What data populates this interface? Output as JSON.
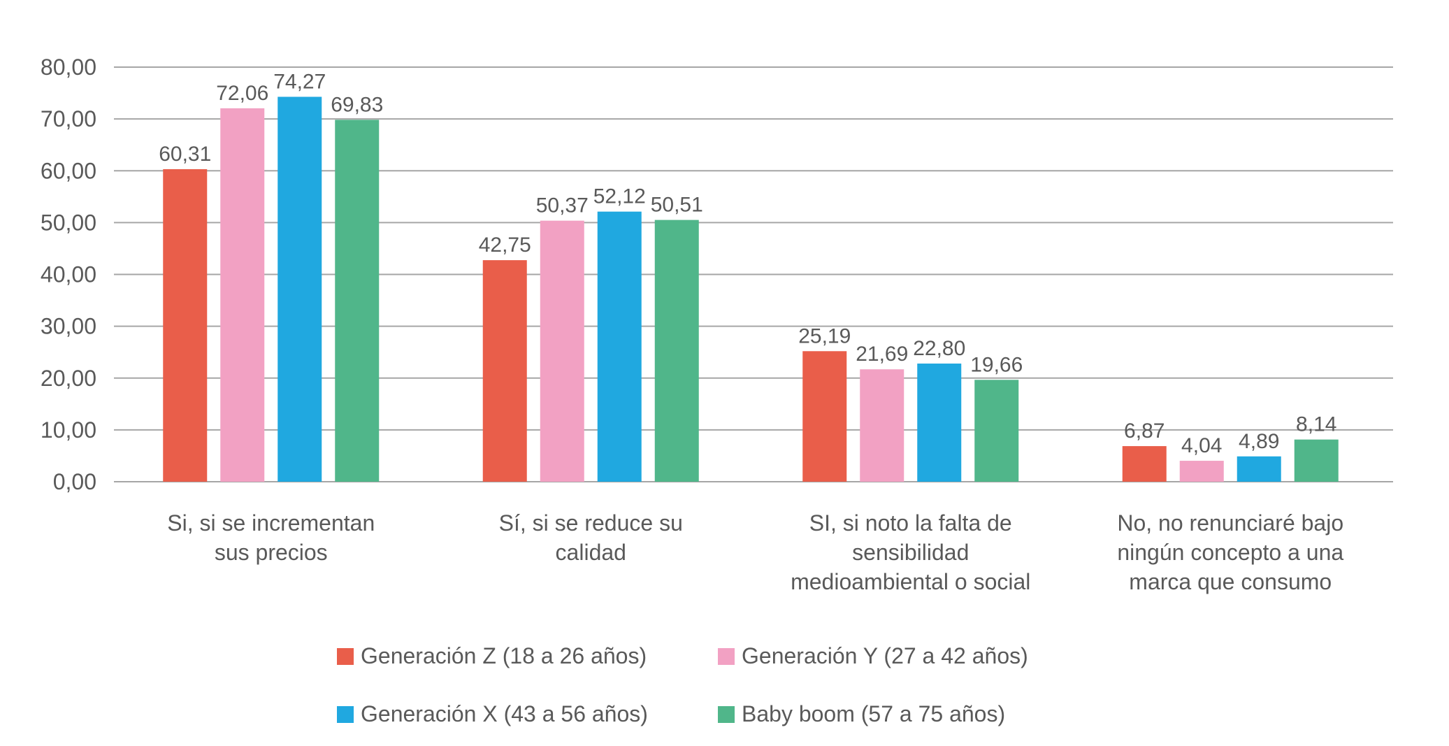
{
  "chart_data": {
    "type": "bar",
    "title": "",
    "xlabel": "",
    "ylabel": "",
    "ylim": [
      0,
      80
    ],
    "yticks": [
      "0,00",
      "10,00",
      "20,00",
      "30,00",
      "40,00",
      "50,00",
      "60,00",
      "70,00",
      "80,00"
    ],
    "ytick_values": [
      0,
      10,
      20,
      30,
      40,
      50,
      60,
      70,
      80
    ],
    "grid": true,
    "legend_position": "bottom",
    "categories": [
      [
        "Si, si se incrementan",
        "sus precios"
      ],
      [
        "Sí, si se reduce su",
        "calidad"
      ],
      [
        "SI, si noto la falta de",
        "sensibilidad",
        "medioambiental o social"
      ],
      [
        "No, no renunciaré bajo",
        "ningún concepto a una",
        "marca que consumo"
      ]
    ],
    "series": [
      {
        "name": "Generación Z (18 a 26 años)",
        "color": "#E95E4A",
        "values": [
          60.31,
          42.75,
          25.19,
          6.87
        ],
        "labels": [
          "60,31",
          "42,75",
          "25,19",
          "6,87"
        ]
      },
      {
        "name": "Generación Y (27 a 42 años)",
        "color": "#F2A1C3",
        "values": [
          72.06,
          50.37,
          21.69,
          4.04
        ],
        "labels": [
          "72,06",
          "50,37",
          "21,69",
          "4,04"
        ]
      },
      {
        "name": "Generación X (43 a 56 años)",
        "color": "#20A8E0",
        "values": [
          74.27,
          52.12,
          22.8,
          4.89
        ],
        "labels": [
          "74,27",
          "52,12",
          "22,80",
          "4,89"
        ]
      },
      {
        "name": "Baby boom (57 a 75 años)",
        "color": "#50B68A",
        "values": [
          69.83,
          50.51,
          19.66,
          8.14
        ],
        "labels": [
          "69,83",
          "50,51",
          "19,66",
          "8,14"
        ]
      }
    ]
  },
  "colors": {
    "text": "#595959",
    "gridline": "#A6A6A6"
  }
}
